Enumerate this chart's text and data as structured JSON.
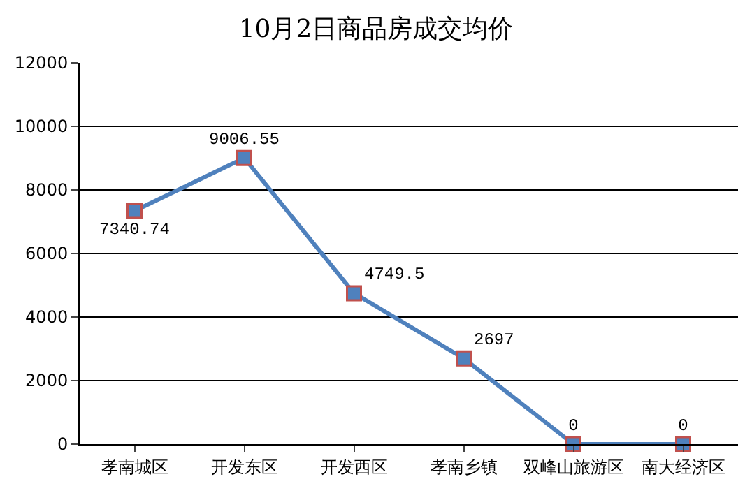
{
  "chart_data": {
    "type": "line",
    "title": "10月2日商品房成交均价",
    "categories": [
      "孝南城区",
      "开发东区",
      "开发西区",
      "孝南乡镇",
      "双峰山旅游区",
      "南大经济区"
    ],
    "series": [
      {
        "color": "#4f81bd",
        "values": [
          7340.74,
          9006.55,
          4749.5,
          2697,
          0,
          0
        ]
      }
    ],
    "ylim": [
      0,
      12000
    ],
    "yticks": [
      0,
      2000,
      4000,
      6000,
      8000,
      10000,
      12000
    ],
    "grid": "y",
    "marker": "square",
    "line_style": "solid",
    "data_labels": true
  }
}
